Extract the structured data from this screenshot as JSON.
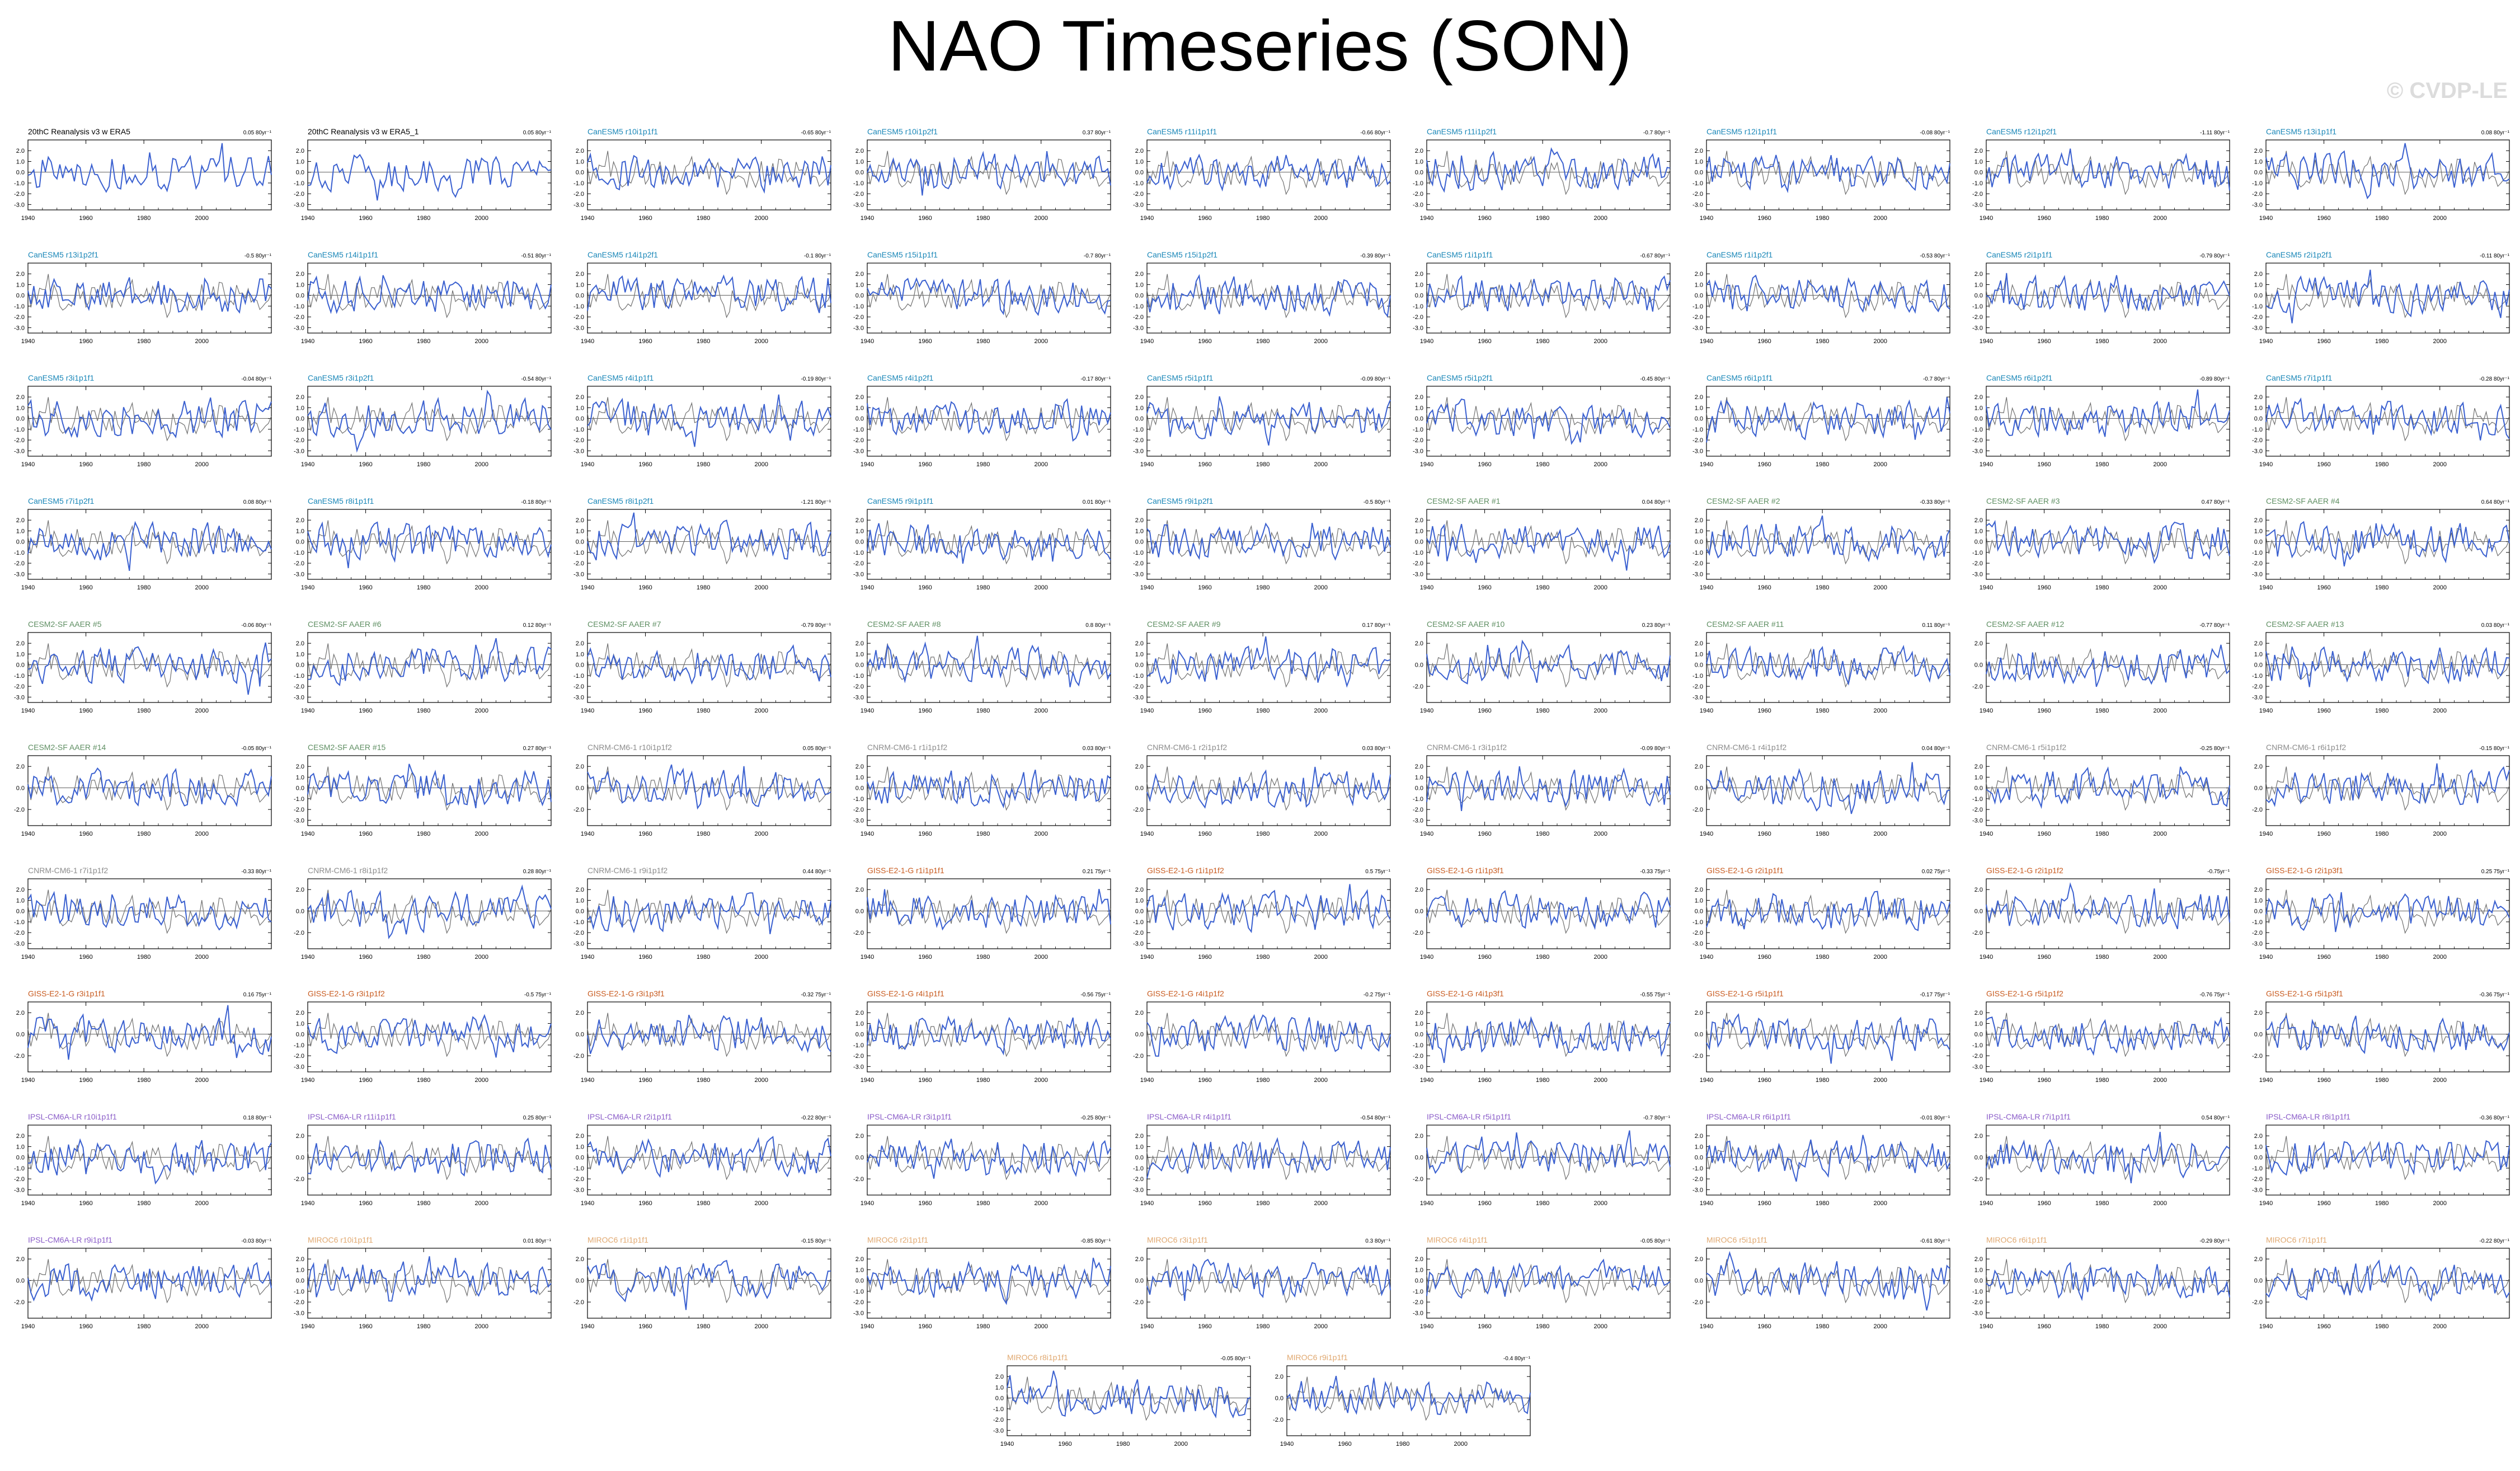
{
  "title": "NAO Timeseries (SON)",
  "watermark": "© CVDP-LE",
  "colors": {
    "obs_title": "#000000",
    "canesm": "#1a87b8",
    "cesm": "#5f8f63",
    "cnrm": "#8c8c8c",
    "giss": "#c85a1e",
    "ipsl": "#8a5cc8",
    "miroc": "#e0a870",
    "ensemble_line": "#3a60d0",
    "obs_line": "#707070"
  },
  "chart_data": {
    "type": "line",
    "panel_count": 92,
    "xlim": [
      1940,
      2024
    ],
    "ylim": [
      -3.5,
      3
    ],
    "x_ticks": [
      "1940",
      "1960",
      "1980",
      "2000"
    ],
    "y_ticks": [
      "2.0",
      "1.0",
      "0.0",
      "-1.0",
      "-2.0",
      "-3.0"
    ],
    "y_ticks_short": [
      "2.0",
      "0.0",
      "-2.0"
    ],
    "line_colors": {
      "member": "blue",
      "reference": "gray"
    },
    "panels": [
      {
        "name": "20thC Reanalysis v3 w ERA5",
        "group": "obs",
        "stat": "0.05 80yr⁻¹"
      },
      {
        "name": "20thC Reanalysis v3 w ERA5_1",
        "group": "obs",
        "stat": "0.05 80yr⁻¹"
      },
      {
        "name": "CanESM5 r10i1p1f1",
        "group": "canesm",
        "stat": "-0.65 80yr⁻¹"
      },
      {
        "name": "CanESM5 r10i1p2f1",
        "group": "canesm",
        "stat": "0.37 80yr⁻¹"
      },
      {
        "name": "CanESM5 r11i1p1f1",
        "group": "canesm",
        "stat": "-0.66 80yr⁻¹"
      },
      {
        "name": "CanESM5 r11i1p2f1",
        "group": "canesm",
        "stat": "-0.7 80yr⁻¹"
      },
      {
        "name": "CanESM5 r12i1p1f1",
        "group": "canesm",
        "stat": "-0.08 80yr⁻¹"
      },
      {
        "name": "CanESM5 r12i1p2f1",
        "group": "canesm",
        "stat": "-1.11 80yr⁻¹"
      },
      {
        "name": "CanESM5 r13i1p1f1",
        "group": "canesm",
        "stat": "0.08 80yr⁻¹"
      },
      {
        "name": "CanESM5 r13i1p2f1",
        "group": "canesm",
        "stat": "-0.5 80yr⁻¹"
      },
      {
        "name": "CanESM5 r14i1p1f1",
        "group": "canesm",
        "stat": "-0.51 80yr⁻¹"
      },
      {
        "name": "CanESM5 r14i1p2f1",
        "group": "canesm",
        "stat": "-0.1 80yr⁻¹"
      },
      {
        "name": "CanESM5 r15i1p1f1",
        "group": "canesm",
        "stat": "-0.7 80yr⁻¹"
      },
      {
        "name": "CanESM5 r15i1p2f1",
        "group": "canesm",
        "stat": "-0.39 80yr⁻¹"
      },
      {
        "name": "CanESM5 r1i1p1f1",
        "group": "canesm",
        "stat": "-0.67 80yr⁻¹"
      },
      {
        "name": "CanESM5 r1i1p2f1",
        "group": "canesm",
        "stat": "-0.53 80yr⁻¹"
      },
      {
        "name": "CanESM5 r2i1p1f1",
        "group": "canesm",
        "stat": "-0.79 80yr⁻¹"
      },
      {
        "name": "CanESM5 r2i1p2f1",
        "group": "canesm",
        "stat": "-0.11 80yr⁻¹"
      },
      {
        "name": "CanESM5 r3i1p1f1",
        "group": "canesm",
        "stat": "-0.04 80yr⁻¹"
      },
      {
        "name": "CanESM5 r3i1p2f1",
        "group": "canesm",
        "stat": "-0.54 80yr⁻¹"
      },
      {
        "name": "CanESM5 r4i1p1f1",
        "group": "canesm",
        "stat": "-0.19 80yr⁻¹"
      },
      {
        "name": "CanESM5 r4i1p2f1",
        "group": "canesm",
        "stat": "-0.17 80yr⁻¹"
      },
      {
        "name": "CanESM5 r5i1p1f1",
        "group": "canesm",
        "stat": "-0.09 80yr⁻¹"
      },
      {
        "name": "CanESM5 r5i1p2f1",
        "group": "canesm",
        "stat": "-0.45 80yr⁻¹"
      },
      {
        "name": "CanESM5 r6i1p1f1",
        "group": "canesm",
        "stat": "-0.7 80yr⁻¹"
      },
      {
        "name": "CanESM5 r6i1p2f1",
        "group": "canesm",
        "stat": "-0.89 80yr⁻¹"
      },
      {
        "name": "CanESM5 r7i1p1f1",
        "group": "canesm",
        "stat": "-0.28 80yr⁻¹"
      },
      {
        "name": "CanESM5 r7i1p2f1",
        "group": "canesm",
        "stat": "0.08 80yr⁻¹"
      },
      {
        "name": "CanESM5 r8i1p1f1",
        "group": "canesm",
        "stat": "-0.18 80yr⁻¹"
      },
      {
        "name": "CanESM5 r8i1p2f1",
        "group": "canesm",
        "stat": "-1.21 80yr⁻¹"
      },
      {
        "name": "CanESM5 r9i1p1f1",
        "group": "canesm",
        "stat": "0.01 80yr⁻¹"
      },
      {
        "name": "CanESM5 r9i1p2f1",
        "group": "canesm",
        "stat": "-0.5 80yr⁻¹"
      },
      {
        "name": "CESM2-SF AAER #1",
        "group": "cesm",
        "stat": "0.04 80yr⁻¹"
      },
      {
        "name": "CESM2-SF AAER #2",
        "group": "cesm",
        "stat": "-0.33 80yr⁻¹"
      },
      {
        "name": "CESM2-SF AAER #3",
        "group": "cesm",
        "stat": "0.47 80yr⁻¹"
      },
      {
        "name": "CESM2-SF AAER #4",
        "group": "cesm",
        "stat": "0.64 80yr⁻¹"
      },
      {
        "name": "CESM2-SF AAER #5",
        "group": "cesm",
        "stat": "-0.06 80yr⁻¹"
      },
      {
        "name": "CESM2-SF AAER #6",
        "group": "cesm",
        "stat": "0.12 80yr⁻¹"
      },
      {
        "name": "CESM2-SF AAER #7",
        "group": "cesm",
        "stat": "-0.79 80yr⁻¹"
      },
      {
        "name": "CESM2-SF AAER #8",
        "group": "cesm",
        "stat": "0.8 80yr⁻¹"
      },
      {
        "name": "CESM2-SF AAER #9",
        "group": "cesm",
        "stat": "0.17 80yr⁻¹"
      },
      {
        "name": "CESM2-SF AAER #10",
        "group": "cesm",
        "stat": "0.23 80yr⁻¹"
      },
      {
        "name": "CESM2-SF AAER #11",
        "group": "cesm",
        "stat": "0.11 80yr⁻¹"
      },
      {
        "name": "CESM2-SF AAER #12",
        "group": "cesm",
        "stat": "-0.77 80yr⁻¹"
      },
      {
        "name": "CESM2-SF AAER #13",
        "group": "cesm",
        "stat": "0.03 80yr⁻¹"
      },
      {
        "name": "CESM2-SF AAER #14",
        "group": "cesm",
        "stat": "-0.05 80yr⁻¹"
      },
      {
        "name": "CESM2-SF AAER #15",
        "group": "cesm",
        "stat": "0.27 80yr⁻¹"
      },
      {
        "name": "CNRM-CM6-1 r10i1p1f2",
        "group": "cnrm",
        "stat": "0.05 80yr⁻¹"
      },
      {
        "name": "CNRM-CM6-1 r1i1p1f2",
        "group": "cnrm",
        "stat": "0.03 80yr⁻¹"
      },
      {
        "name": "CNRM-CM6-1 r2i1p1f2",
        "group": "cnrm",
        "stat": "0.03 80yr⁻¹"
      },
      {
        "name": "CNRM-CM6-1 r3i1p1f2",
        "group": "cnrm",
        "stat": "-0.09 80yr⁻¹"
      },
      {
        "name": "CNRM-CM6-1 r4i1p1f2",
        "group": "cnrm",
        "stat": "0.04 80yr⁻¹"
      },
      {
        "name": "CNRM-CM6-1 r5i1p1f2",
        "group": "cnrm",
        "stat": "-0.25 80yr⁻¹"
      },
      {
        "name": "CNRM-CM6-1 r6i1p1f2",
        "group": "cnrm",
        "stat": "-0.15 80yr⁻¹"
      },
      {
        "name": "CNRM-CM6-1 r7i1p1f2",
        "group": "cnrm",
        "stat": "-0.33 80yr⁻¹"
      },
      {
        "name": "CNRM-CM6-1 r8i1p1f2",
        "group": "cnrm",
        "stat": "0.28 80yr⁻¹"
      },
      {
        "name": "CNRM-CM6-1 r9i1p1f2",
        "group": "cnrm",
        "stat": "0.44 80yr⁻¹"
      },
      {
        "name": "GISS-E2-1-G r1i1p1f1",
        "group": "giss",
        "stat": "0.21 75yr⁻¹"
      },
      {
        "name": "GISS-E2-1-G r1i1p1f2",
        "group": "giss",
        "stat": "0.5 75yr⁻¹"
      },
      {
        "name": "GISS-E2-1-G r1i1p3f1",
        "group": "giss",
        "stat": "-0.33 75yr⁻¹"
      },
      {
        "name": "GISS-E2-1-G r2i1p1f1",
        "group": "giss",
        "stat": "0.02 75yr⁻¹"
      },
      {
        "name": "GISS-E2-1-G r2i1p1f2",
        "group": "giss",
        "stat": "-0.75yr⁻¹"
      },
      {
        "name": "GISS-E2-1-G r2i1p3f1",
        "group": "giss",
        "stat": "0.25 75yr⁻¹"
      },
      {
        "name": "GISS-E2-1-G r3i1p1f1",
        "group": "giss",
        "stat": "0.16 75yr⁻¹"
      },
      {
        "name": "GISS-E2-1-G r3i1p1f2",
        "group": "giss",
        "stat": "-0.5 75yr⁻¹"
      },
      {
        "name": "GISS-E2-1-G r3i1p3f1",
        "group": "giss",
        "stat": "-0.32 75yr⁻¹"
      },
      {
        "name": "GISS-E2-1-G r4i1p1f1",
        "group": "giss",
        "stat": "-0.56 75yr⁻¹"
      },
      {
        "name": "GISS-E2-1-G r4i1p1f2",
        "group": "giss",
        "stat": "-0.2 75yr⁻¹"
      },
      {
        "name": "GISS-E2-1-G r4i1p3f1",
        "group": "giss",
        "stat": "-0.55 75yr⁻¹"
      },
      {
        "name": "GISS-E2-1-G r5i1p1f1",
        "group": "giss",
        "stat": "-0.17 75yr⁻¹"
      },
      {
        "name": "GISS-E2-1-G r5i1p1f2",
        "group": "giss",
        "stat": "-0.76 75yr⁻¹"
      },
      {
        "name": "GISS-E2-1-G r5i1p3f1",
        "group": "giss",
        "stat": "-0.36 75yr⁻¹"
      },
      {
        "name": "IPSL-CM6A-LR r10i1p1f1",
        "group": "ipsl",
        "stat": "0.18 80yr⁻¹"
      },
      {
        "name": "IPSL-CM6A-LR r11i1p1f1",
        "group": "ipsl",
        "stat": "0.25 80yr⁻¹"
      },
      {
        "name": "IPSL-CM6A-LR r2i1p1f1",
        "group": "ipsl",
        "stat": "-0.22 80yr⁻¹"
      },
      {
        "name": "IPSL-CM6A-LR r3i1p1f1",
        "group": "ipsl",
        "stat": "-0.25 80yr⁻¹"
      },
      {
        "name": "IPSL-CM6A-LR r4i1p1f1",
        "group": "ipsl",
        "stat": "-0.54 80yr⁻¹"
      },
      {
        "name": "IPSL-CM6A-LR r5i1p1f1",
        "group": "ipsl",
        "stat": "-0.7 80yr⁻¹"
      },
      {
        "name": "IPSL-CM6A-LR r6i1p1f1",
        "group": "ipsl",
        "stat": "-0.01 80yr⁻¹"
      },
      {
        "name": "IPSL-CM6A-LR r7i1p1f1",
        "group": "ipsl",
        "stat": "0.54 80yr⁻¹"
      },
      {
        "name": "IPSL-CM6A-LR r8i1p1f1",
        "group": "ipsl",
        "stat": "-0.36 80yr⁻¹"
      },
      {
        "name": "IPSL-CM6A-LR r9i1p1f1",
        "group": "ipsl",
        "stat": "-0.03 80yr⁻¹"
      },
      {
        "name": "MIROC6 r10i1p1f1",
        "group": "miroc",
        "stat": "0.01 80yr⁻¹"
      },
      {
        "name": "MIROC6 r1i1p1f1",
        "group": "miroc",
        "stat": "-0.15 80yr⁻¹"
      },
      {
        "name": "MIROC6 r2i1p1f1",
        "group": "miroc",
        "stat": "-0.85 80yr⁻¹"
      },
      {
        "name": "MIROC6 r3i1p1f1",
        "group": "miroc",
        "stat": "0.3 80yr⁻¹"
      },
      {
        "name": "MIROC6 r4i1p1f1",
        "group": "miroc",
        "stat": "-0.05 80yr⁻¹"
      },
      {
        "name": "MIROC6 r5i1p1f1",
        "group": "miroc",
        "stat": "-0.61 80yr⁻¹"
      },
      {
        "name": "MIROC6 r6i1p1f1",
        "group": "miroc",
        "stat": "-0.29 80yr⁻¹"
      },
      {
        "name": "MIROC6 r7i1p1f1",
        "group": "miroc",
        "stat": "-0.22 80yr⁻¹"
      },
      {
        "name": "MIROC6 r8i1p1f1",
        "group": "miroc",
        "stat": "-0.05 80yr⁻¹"
      },
      {
        "name": "MIROC6 r9i1p1f1",
        "group": "miroc",
        "stat": "-0.4 80yr⁻¹"
      }
    ]
  }
}
